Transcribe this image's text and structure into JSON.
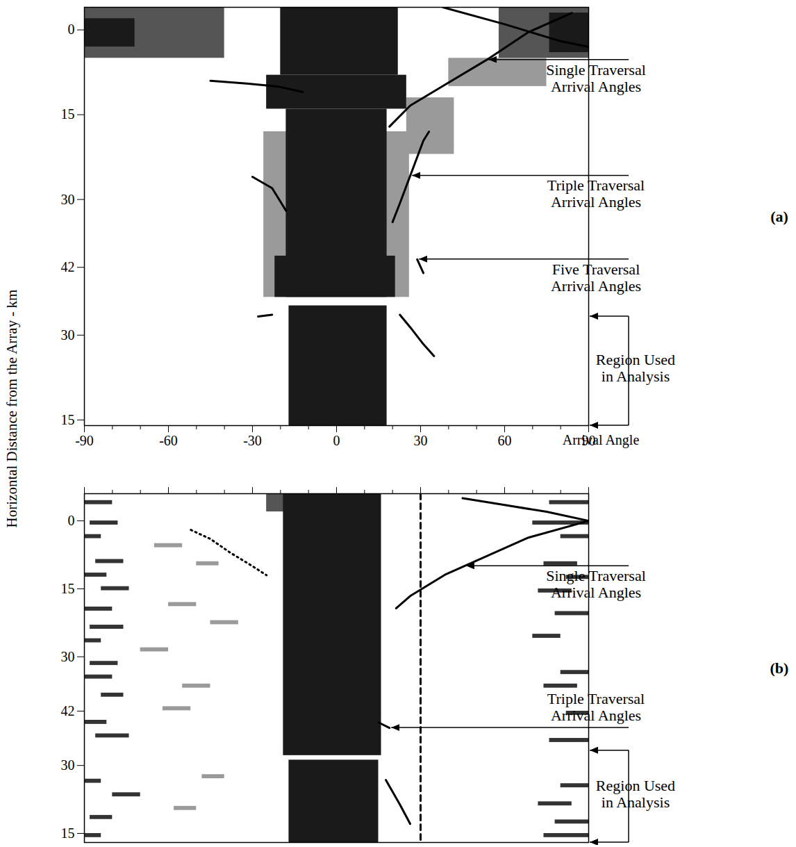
{
  "chart_data": {
    "type": "heatmap",
    "ylabel": "Horizontal Distance from the Array - km",
    "xlabel": "Arrival Angle",
    "xlim": [
      -90,
      90
    ],
    "xticks": [
      -90,
      -60,
      -30,
      0,
      30,
      60,
      90
    ],
    "xminorticks": [
      -80,
      -70,
      -50,
      -40,
      -20,
      -10,
      10,
      20,
      40,
      50,
      70,
      80
    ],
    "panels": [
      {
        "panel_label": "(a)",
        "ylim": [
          -4,
          70
        ],
        "yticks": [
          {
            "value": 0,
            "label": "0"
          },
          {
            "value": 15,
            "label": "15"
          },
          {
            "value": 30,
            "label": "30"
          },
          {
            "value": 42,
            "label": "42"
          },
          {
            "value": 54,
            "label": "30"
          },
          {
            "value": 69,
            "label": "15"
          }
        ],
        "regions": [
          {
            "x0": -26,
            "x1": 26,
            "y0": 18,
            "y1": 47.3,
            "color": "#9a9a9a"
          },
          {
            "x0": -90,
            "x1": -40,
            "y0": -4,
            "y1": 5,
            "color": "#555555"
          },
          {
            "x0": -90,
            "x1": -72,
            "y0": -2,
            "y1": 3,
            "color": "#1a1a1a"
          },
          {
            "x0": 58,
            "x1": 90,
            "y0": -4,
            "y1": 5,
            "color": "#555555"
          },
          {
            "x0": 76,
            "x1": 90,
            "y0": -3,
            "y1": 4,
            "color": "#1a1a1a"
          },
          {
            "x0": 40,
            "x1": 75,
            "y0": 5,
            "y1": 10,
            "color": "#9a9a9a"
          },
          {
            "x0": 25,
            "x1": 42,
            "y0": 12,
            "y1": 22,
            "color": "#9a9a9a"
          },
          {
            "x0": -20,
            "x1": 22,
            "y0": -4,
            "y1": 8,
            "color": "#1a1a1a"
          },
          {
            "x0": -25,
            "x1": 25,
            "y0": 8,
            "y1": 14,
            "color": "#1a1a1a"
          },
          {
            "x0": -18,
            "x1": 18,
            "y0": 14,
            "y1": 47.3,
            "color": "#1a1a1a"
          },
          {
            "x0": -22,
            "x1": 21,
            "y0": 40,
            "y1": 47.3,
            "color": "#1a1a1a"
          },
          {
            "x0": -17,
            "x1": 18,
            "y0": 48.8,
            "y1": 70,
            "color": "#1a1a1a"
          }
        ],
        "curves": [
          {
            "points": [
              [
                84,
                -3
              ],
              [
                68.5,
                0.4
              ],
              [
                53.6,
                5.3
              ],
              [
                38.7,
                9.7
              ],
              [
                26.3,
                13.4
              ],
              [
                18.9,
                17.1
              ]
            ],
            "color": "#000000",
            "line_style": "solid"
          },
          {
            "points": [
              [
                38,
                -4
              ],
              [
                60,
                -1
              ],
              [
                80,
                2
              ],
              [
                90,
                3
              ]
            ],
            "color": "#000000",
            "line_style": "solid"
          },
          {
            "points": [
              [
                -45,
                9
              ],
              [
                -32,
                9.5
              ],
              [
                -21,
                10
              ],
              [
                -12,
                11
              ]
            ],
            "color": "#000000",
            "line_style": "solid"
          },
          {
            "points": [
              [
                33,
                18
              ],
              [
                31,
                19.6
              ],
              [
                26.3,
                25.8
              ],
              [
                22.6,
                30.7
              ],
              [
                20,
                34
              ]
            ],
            "color": "#000000",
            "line_style": "solid"
          },
          {
            "points": [
              [
                -30,
                26
              ],
              [
                -23,
                28
              ],
              [
                -18,
                32
              ]
            ],
            "color": "#000000",
            "line_style": "solid"
          },
          {
            "points": [
              [
                28.8,
                40.6
              ],
              [
                31,
                43
              ]
            ],
            "color": "#000000",
            "line_style": "solid"
          },
          {
            "points": [
              [
                22.6,
                50.4
              ],
              [
                26.3,
                52.6
              ],
              [
                31,
                55.6
              ],
              [
                34.8,
                57.7
              ]
            ],
            "color": "#000000",
            "line_style": "solid"
          },
          {
            "points": [
              [
                -28,
                50.7
              ],
              [
                -23,
                50.4
              ]
            ],
            "color": "#000000",
            "line_style": "solid"
          }
        ],
        "annotations": [
          {
            "text": "Single Traversal Arrival Angles",
            "x": 53.6,
            "y": 5.3
          },
          {
            "text": "Triple Traversal Arrival Angles",
            "x": 26.3,
            "y": 25.8
          },
          {
            "text": "Five Traversal Arrival Angles",
            "x": 28.8,
            "y": 40.6
          }
        ],
        "bracket": {
          "text": "Region Used in Analysis",
          "y0": 50.7,
          "y1": 70
        }
      },
      {
        "panel_label": "(b)",
        "ylim": [
          -6,
          71
        ],
        "yticks": [
          {
            "value": 0,
            "label": "0"
          },
          {
            "value": 15,
            "label": "15"
          },
          {
            "value": 30,
            "label": "30"
          },
          {
            "value": 42,
            "label": "42"
          },
          {
            "value": 54,
            "label": "30"
          },
          {
            "value": 69,
            "label": "15"
          }
        ],
        "tick_labels": "y",
        "regions": [
          {
            "x0": -25,
            "x1": -18,
            "y0": -6,
            "y1": -2,
            "color": "#555555"
          },
          {
            "x0": -90,
            "x1": -80,
            "y0": -4.5,
            "y1": -3.6,
            "color": "#333333"
          },
          {
            "x0": -88,
            "x1": -78,
            "y0": 0,
            "y1": 0.9,
            "color": "#333333"
          },
          {
            "x0": -90,
            "x1": -84,
            "y0": 3,
            "y1": 3.9,
            "color": "#333333"
          },
          {
            "x0": -86,
            "x1": -76,
            "y0": 8.5,
            "y1": 9.4,
            "color": "#333333"
          },
          {
            "x0": -90,
            "x1": -82,
            "y0": 11.5,
            "y1": 12.4,
            "color": "#333333"
          },
          {
            "x0": -84,
            "x1": -74,
            "y0": 14.5,
            "y1": 15.4,
            "color": "#333333"
          },
          {
            "x0": -90,
            "x1": -80,
            "y0": 19,
            "y1": 19.9,
            "color": "#333333"
          },
          {
            "x0": -88,
            "x1": -76,
            "y0": 23,
            "y1": 23.9,
            "color": "#333333"
          },
          {
            "x0": -90,
            "x1": -84,
            "y0": 26,
            "y1": 26.9,
            "color": "#333333"
          },
          {
            "x0": -88,
            "x1": -78,
            "y0": 31,
            "y1": 31.9,
            "color": "#333333"
          },
          {
            "x0": -90,
            "x1": -80,
            "y0": 34,
            "y1": 34.9,
            "color": "#333333"
          },
          {
            "x0": -84,
            "x1": -76,
            "y0": 38,
            "y1": 38.9,
            "color": "#333333"
          },
          {
            "x0": -90,
            "x1": -82,
            "y0": 44,
            "y1": 44.9,
            "color": "#333333"
          },
          {
            "x0": -86,
            "x1": -74,
            "y0": 47,
            "y1": 47.9,
            "color": "#333333"
          },
          {
            "x0": -90,
            "x1": -84,
            "y0": 57,
            "y1": 57.9,
            "color": "#333333"
          },
          {
            "x0": -80,
            "x1": -70,
            "y0": 60,
            "y1": 60.9,
            "color": "#333333"
          },
          {
            "x0": -88,
            "x1": -80,
            "y0": 65,
            "y1": 65.9,
            "color": "#333333"
          },
          {
            "x0": -90,
            "x1": -84,
            "y0": 69,
            "y1": 69.9,
            "color": "#333333"
          },
          {
            "x0": -65,
            "x1": -55,
            "y0": 5,
            "y1": 5.9,
            "color": "#9a9a9a"
          },
          {
            "x0": -50,
            "x1": -42,
            "y0": 9,
            "y1": 9.9,
            "color": "#9a9a9a"
          },
          {
            "x0": -60,
            "x1": -50,
            "y0": 18,
            "y1": 18.9,
            "color": "#9a9a9a"
          },
          {
            "x0": -45,
            "x1": -35,
            "y0": 22,
            "y1": 22.9,
            "color": "#9a9a9a"
          },
          {
            "x0": -70,
            "x1": -60,
            "y0": 28,
            "y1": 28.9,
            "color": "#9a9a9a"
          },
          {
            "x0": -55,
            "x1": -45,
            "y0": 36,
            "y1": 36.9,
            "color": "#9a9a9a"
          },
          {
            "x0": -62,
            "x1": -52,
            "y0": 41,
            "y1": 41.9,
            "color": "#9a9a9a"
          },
          {
            "x0": -48,
            "x1": -40,
            "y0": 56,
            "y1": 56.9,
            "color": "#9a9a9a"
          },
          {
            "x0": -58,
            "x1": -50,
            "y0": 63,
            "y1": 63.9,
            "color": "#9a9a9a"
          },
          {
            "x0": 76,
            "x1": 90,
            "y0": -4.5,
            "y1": -3.6,
            "color": "#333333"
          },
          {
            "x0": 70,
            "x1": 90,
            "y0": 0,
            "y1": 0.9,
            "color": "#333333"
          },
          {
            "x0": 80,
            "x1": 90,
            "y0": 3,
            "y1": 3.9,
            "color": "#333333"
          },
          {
            "x0": 74,
            "x1": 86,
            "y0": 9,
            "y1": 9.9,
            "color": "#333333"
          },
          {
            "x0": 82,
            "x1": 90,
            "y0": 12,
            "y1": 12.9,
            "color": "#333333"
          },
          {
            "x0": 72,
            "x1": 84,
            "y0": 15,
            "y1": 15.9,
            "color": "#333333"
          },
          {
            "x0": 78,
            "x1": 90,
            "y0": 20,
            "y1": 20.9,
            "color": "#333333"
          },
          {
            "x0": 70,
            "x1": 80,
            "y0": 25,
            "y1": 25.9,
            "color": "#333333"
          },
          {
            "x0": 80,
            "x1": 90,
            "y0": 33,
            "y1": 33.9,
            "color": "#333333"
          },
          {
            "x0": 74,
            "x1": 86,
            "y0": 36,
            "y1": 36.9,
            "color": "#333333"
          },
          {
            "x0": 82,
            "x1": 90,
            "y0": 42,
            "y1": 42.9,
            "color": "#333333"
          },
          {
            "x0": 76,
            "x1": 90,
            "y0": 48,
            "y1": 48.9,
            "color": "#333333"
          },
          {
            "x0": 80,
            "x1": 90,
            "y0": 58,
            "y1": 58.9,
            "color": "#333333"
          },
          {
            "x0": 72,
            "x1": 84,
            "y0": 62,
            "y1": 62.9,
            "color": "#333333"
          },
          {
            "x0": 78,
            "x1": 90,
            "y0": 66,
            "y1": 66.9,
            "color": "#333333"
          },
          {
            "x0": 74,
            "x1": 90,
            "y0": 69,
            "y1": 69.9,
            "color": "#333333"
          },
          {
            "x0": -19,
            "x1": 16,
            "y0": -6,
            "y1": 51.8,
            "color": "#1a1a1a"
          },
          {
            "x0": -17,
            "x1": 15,
            "y0": 52.8,
            "y1": 71,
            "color": "#1a1a1a"
          }
        ],
        "curves": [
          {
            "points": [
              [
                30,
                -6
              ],
              [
                30,
                71
              ]
            ],
            "color": "#000000",
            "line_style": "dashed"
          },
          {
            "points": [
              [
                90,
                0
              ],
              [
                68.5,
                3.7
              ],
              [
                53.6,
                7.8
              ],
              [
                38.7,
                11.9
              ],
              [
                26.3,
                16.6
              ],
              [
                21.3,
                19.3
              ]
            ],
            "color": "#000000",
            "line_style": "solid"
          },
          {
            "points": [
              [
                90,
                0
              ],
              [
                75,
                -2
              ],
              [
                60,
                -3.5
              ],
              [
                45,
                -5
              ]
            ],
            "color": "#000000",
            "line_style": "solid"
          },
          {
            "points": [
              [
                -52,
                2
              ],
              [
                -45,
                4
              ],
              [
                -38,
                7
              ],
              [
                -30,
                10
              ],
              [
                -25,
                12
              ]
            ],
            "color": "#000000",
            "line_style": "dotted"
          },
          {
            "points": [
              [
                15,
                44.5
              ],
              [
                18.9,
                45.7
              ]
            ],
            "color": "#000000",
            "line_style": "solid"
          },
          {
            "points": [
              [
                17.6,
                57.2
              ],
              [
                22.6,
                62.6
              ],
              [
                26.3,
                66.9
              ]
            ],
            "color": "#000000",
            "line_style": "solid"
          }
        ],
        "annotations": [
          {
            "text": "Single Traversal Arrival Angles",
            "x": 45.6,
            "y": 10
          },
          {
            "text": "Triple Traversal Arrival Angles",
            "x": 18.9,
            "y": 45.7
          }
        ],
        "bracket": {
          "text": "Region Used in Analysis",
          "y0": 50.7,
          "y1": 71
        }
      }
    ]
  }
}
